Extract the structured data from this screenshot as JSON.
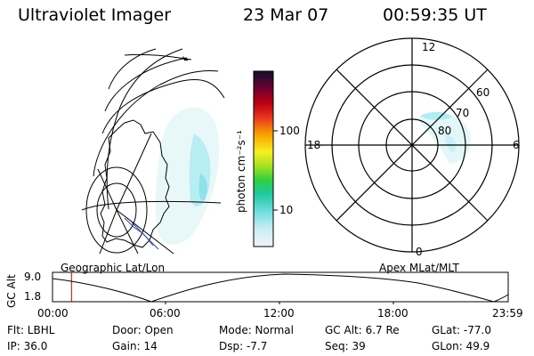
{
  "header": {
    "title": "Ultraviolet Imager",
    "date": "23 Mar 07",
    "time": "00:59:35 UT"
  },
  "colorbar": {
    "unit_label": "photon cm⁻²s⁻¹",
    "ticks": [
      "100",
      "10"
    ]
  },
  "polar_plot": {
    "mlt_labels": [
      "12",
      "18",
      "6",
      "0"
    ],
    "mlat_labels": [
      "60",
      "70",
      "80"
    ]
  },
  "panels": {
    "left_caption": "Geographic Lat/Lon",
    "right_caption": "Apex MLat/MLT"
  },
  "altitude_strip": {
    "axis_label": "GC Alt",
    "y_ticks": [
      "9.0",
      "1.8"
    ],
    "x_ticks": [
      "00:00",
      "06:00",
      "12:00",
      "18:00",
      "23:59"
    ],
    "marker_time_hours": 1.0
  },
  "status": {
    "flt": "Flt: LBHL",
    "ip": "IP: 36.0",
    "door": "Door: Open",
    "gain": "Gain: 14",
    "mode": "Mode: Normal",
    "dsp": "Dsp:   -7.7",
    "gc_alt": "GC Alt: 6.7 Re",
    "seq": "Seq: 39",
    "glat": "GLat: -77.0",
    "glon": "GLon:  49.9"
  },
  "colors": {
    "aurora": "#aeeef2",
    "aurora_light": "#dff7f8",
    "marker": "#cc0000"
  }
}
